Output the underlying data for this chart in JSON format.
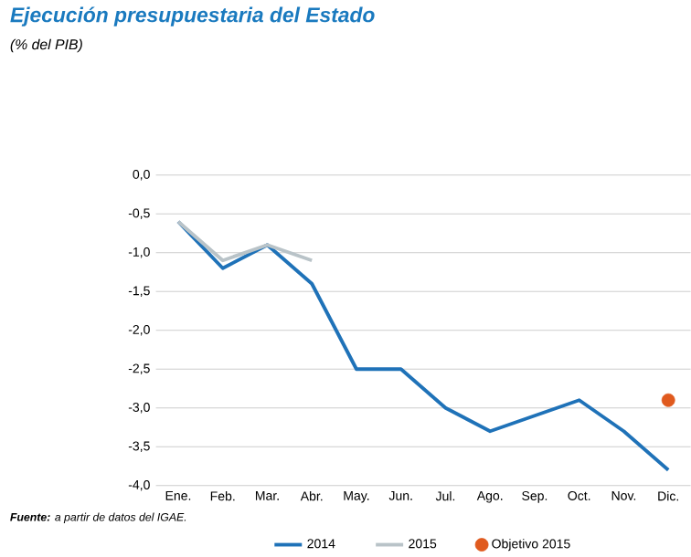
{
  "chart_data": {
    "type": "line",
    "title": "Ejecución presupuestaria del Estado",
    "subtitle": "(% del PIB)",
    "categories": [
      "Ene.",
      "Feb.",
      "Mar.",
      "Abr.",
      "May.",
      "Jun.",
      "Jul.",
      "Ago.",
      "Sep.",
      "Oct.",
      "Nov.",
      "Dic."
    ],
    "series": [
      {
        "name": "2014",
        "color": "#1f72b8",
        "values": [
          -0.6,
          -1.2,
          -0.9,
          -1.4,
          -2.5,
          -2.5,
          -3.0,
          -3.3,
          -3.1,
          -2.9,
          -3.3,
          -3.8
        ]
      },
      {
        "name": "2015",
        "color": "#b9c3c8",
        "values": [
          -0.6,
          -1.1,
          -0.9,
          -1.1,
          null,
          null,
          null,
          null,
          null,
          null,
          null,
          null
        ]
      },
      {
        "name": "Objetivo 2015",
        "type": "scatter",
        "color": "#e05a1e",
        "values": [
          null,
          null,
          null,
          null,
          null,
          null,
          null,
          null,
          null,
          null,
          null,
          -2.9
        ]
      }
    ],
    "ylim": [
      -4,
      0
    ],
    "yticks": [
      {
        "value": 0,
        "label": "0,0"
      },
      {
        "value": -0.5,
        "label": "-0,5"
      },
      {
        "value": -1,
        "label": "-1,0"
      },
      {
        "value": -1.5,
        "label": "-1,5"
      },
      {
        "value": -2,
        "label": "-2,0"
      },
      {
        "value": -2.5,
        "label": "-2,5"
      },
      {
        "value": -3,
        "label": "-3,0"
      },
      {
        "value": -3.5,
        "label": "-3,5"
      },
      {
        "value": -4,
        "label": "-4,0"
      }
    ],
    "grid": "y",
    "legend": "bottom",
    "annotations": [
      "**Fuente:** a partir de datos del IGAE."
    ]
  }
}
